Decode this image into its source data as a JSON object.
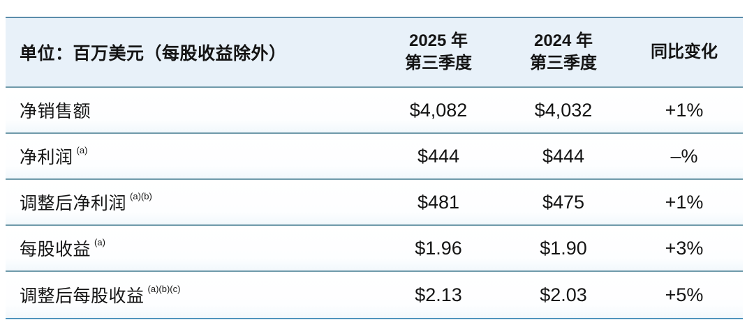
{
  "colors": {
    "header_bg": "#e8f1f9",
    "rule_top": "#5b8dab",
    "rule_mid": "#6f9aaa",
    "rule_bottom": "#4e93bd",
    "text": "#141414"
  },
  "table": {
    "unit_label": "单位：百万美元（每股收益除外）",
    "columns": [
      {
        "line1": "2025 年",
        "line2": "第三季度"
      },
      {
        "line1": "2024 年",
        "line2": "第三季度"
      },
      {
        "line1": "同比变化",
        "line2": ""
      }
    ],
    "rows": [
      {
        "label": "净销售额",
        "sup": "",
        "v2025": "$4,082",
        "v2024": "$4,032",
        "yoy": "+1%"
      },
      {
        "label": "净利润",
        "sup": "(a)",
        "v2025": "$444",
        "v2024": "$444",
        "yoy": "–%"
      },
      {
        "label": "调整后净利润",
        "sup": "(a)(b)",
        "v2025": "$481",
        "v2024": "$475",
        "yoy": "+1%"
      },
      {
        "label": "每股收益",
        "sup": "(a)",
        "v2025": "$1.96",
        "v2024": "$1.90",
        "yoy": "+3%"
      },
      {
        "label": "调整后每股收益",
        "sup": "(a)(b)(c)",
        "v2025": "$2.13",
        "v2024": "$2.03",
        "yoy": "+5%"
      }
    ]
  },
  "chart_data": {
    "type": "table",
    "title": "单位：百万美元（每股收益除外）",
    "columns": [
      "单位：百万美元（每股收益除外）",
      "2025 年第三季度",
      "2024 年第三季度",
      "同比变化"
    ],
    "rows": [
      [
        "净销售额",
        "$4,082",
        "$4,032",
        "+1%"
      ],
      [
        "净利润 (a)",
        "$444",
        "$444",
        "–%"
      ],
      [
        "调整后净利润 (a)(b)",
        "$481",
        "$475",
        "+1%"
      ],
      [
        "每股收益 (a)",
        "$1.96",
        "$1.90",
        "+3%"
      ],
      [
        "调整后每股收益 (a)(b)(c)",
        "$2.13",
        "$2.03",
        "+5%"
      ]
    ]
  }
}
